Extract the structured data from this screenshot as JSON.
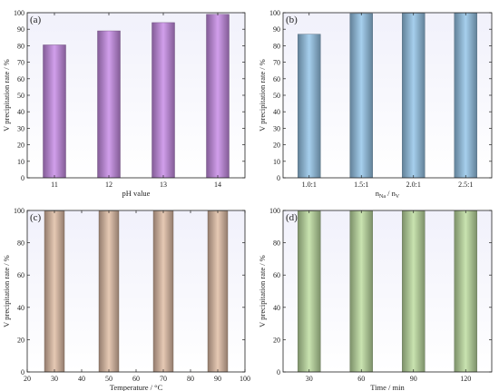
{
  "chart_data": [
    {
      "panel": "(a)",
      "type": "bar",
      "categories": [
        "11",
        "12",
        "13",
        "14"
      ],
      "values": [
        80.5,
        89,
        94,
        99
      ],
      "ylabel": "V precipitation rate / %",
      "xlabel": "pH value",
      "ylim": [
        0,
        100
      ],
      "yticks": [
        "0",
        "10",
        "20",
        "30",
        "40",
        "50",
        "60",
        "70",
        "80",
        "90",
        "100"
      ],
      "bar_color": "#c98ee8",
      "grid": false
    },
    {
      "panel": "(b)",
      "type": "bar",
      "categories": [
        "1.0:1",
        "1.5:1",
        "2.0:1",
        "2.5:1"
      ],
      "values": [
        87,
        99.5,
        99.7,
        99.8
      ],
      "ylabel": "V precipitation rate / %",
      "xlabel": "nNa / nV",
      "xlabel_parts": {
        "n1": "n",
        "sub1": "Na",
        "sep": " / ",
        "n2": "n",
        "sub2": "V"
      },
      "ylim": [
        0,
        100
      ],
      "yticks": [
        "0",
        "10",
        "20",
        "30",
        "40",
        "50",
        "60",
        "70",
        "80",
        "90",
        "100"
      ],
      "bar_color": "#96c6ea",
      "grid": false
    },
    {
      "panel": "(c)",
      "type": "bar",
      "x": [
        30,
        50,
        70,
        90
      ],
      "values": [
        99.6,
        99.7,
        99.7,
        99.7
      ],
      "ylabel": "V precipitation rate / %",
      "xlabel": "Temperature / °C",
      "xlim": [
        20,
        100
      ],
      "xticks": [
        "20",
        "30",
        "40",
        "50",
        "60",
        "70",
        "80",
        "90",
        "100"
      ],
      "ylim": [
        0,
        100
      ],
      "yticks": [
        "0",
        "20",
        "40",
        "60",
        "80",
        "100"
      ],
      "bar_color": "#e2bfa7",
      "grid": false
    },
    {
      "panel": "(d)",
      "type": "bar",
      "categories": [
        "30",
        "60",
        "90",
        "120"
      ],
      "values": [
        99.6,
        99.7,
        99.7,
        99.8
      ],
      "ylabel": "V precipitation rate / %",
      "xlabel": "Time / min",
      "ylim": [
        0,
        100
      ],
      "yticks": [
        "0",
        "20",
        "40",
        "60",
        "80",
        "100"
      ],
      "bar_color": "#bfdea2",
      "grid": false
    }
  ]
}
